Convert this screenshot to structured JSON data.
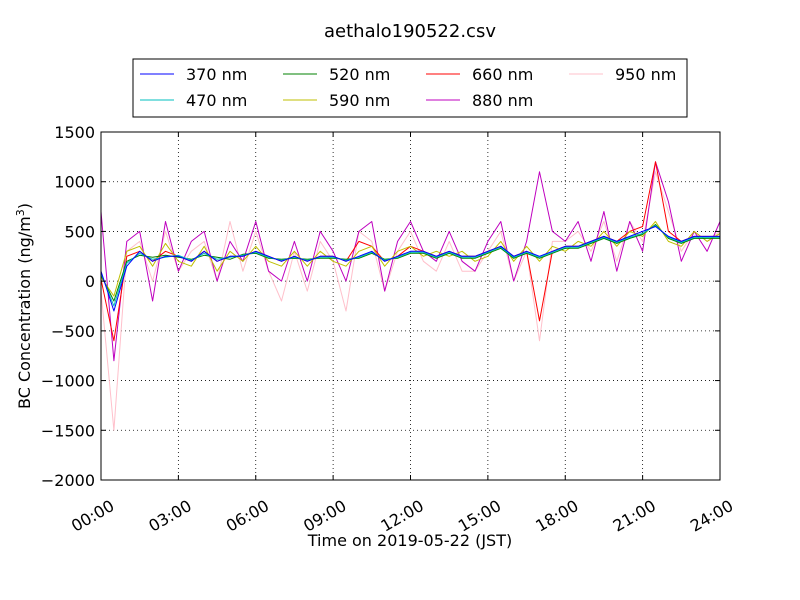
{
  "chart_data": {
    "type": "line",
    "title": "aethalo190522.csv",
    "xlabel": "Time on 2019-05-22 (JST)",
    "ylabel_main": "BC Concentration (ng/m",
    "ylabel_sup": "3",
    "ylabel_end": ")",
    "xlim": [
      0,
      24
    ],
    "ylim": [
      -2000,
      1500
    ],
    "x_ticks": [
      0,
      3,
      6,
      9,
      12,
      15,
      18,
      21,
      24
    ],
    "x_tick_labels": [
      "00:00",
      "03:00",
      "06:00",
      "09:00",
      "12:00",
      "15:00",
      "18:00",
      "21:00",
      "24:00"
    ],
    "y_ticks": [
      -2000,
      -1500,
      -1000,
      -500,
      0,
      500,
      1000,
      1500
    ],
    "y_tick_labels": [
      "−2000",
      "−1500",
      "−1000",
      "−500",
      "0",
      "500",
      "1000",
      "1500"
    ],
    "grid": true,
    "legend_position": "top",
    "x_unit": "hours of day",
    "x_points": [
      0,
      0.5,
      1,
      1.5,
      2,
      2.5,
      3,
      3.5,
      4,
      4.5,
      5,
      5.5,
      6,
      6.5,
      7,
      7.5,
      8,
      8.5,
      9,
      9.5,
      10,
      10.5,
      11,
      11.5,
      12,
      12.5,
      13,
      13.5,
      14,
      14.5,
      15,
      15.5,
      16,
      16.5,
      17,
      17.5,
      18,
      18.5,
      19,
      19.5,
      20,
      20.5,
      21,
      21.5,
      22,
      22.5,
      23,
      23.5,
      24
    ],
    "series": [
      {
        "name": "370 nm",
        "color": "#0000ff",
        "values": [
          100,
          -300,
          150,
          300,
          200,
          250,
          250,
          200,
          300,
          200,
          250,
          250,
          300,
          250,
          200,
          250,
          200,
          250,
          250,
          200,
          250,
          300,
          200,
          250,
          300,
          300,
          250,
          300,
          250,
          250,
          300,
          350,
          250,
          300,
          250,
          300,
          350,
          350,
          400,
          450,
          400,
          450,
          500,
          550,
          450,
          400,
          450,
          450,
          450
        ]
      },
      {
        "name": "470 nm",
        "color": "#00bfbf",
        "values": [
          80,
          -250,
          180,
          280,
          220,
          240,
          260,
          210,
          280,
          220,
          240,
          260,
          290,
          240,
          210,
          240,
          210,
          240,
          240,
          210,
          240,
          290,
          210,
          240,
          290,
          290,
          240,
          290,
          240,
          240,
          290,
          340,
          240,
          290,
          240,
          290,
          340,
          340,
          390,
          440,
          390,
          440,
          480,
          560,
          440,
          390,
          440,
          440,
          440
        ]
      },
      {
        "name": "520 nm",
        "color": "#008000",
        "values": [
          60,
          -200,
          200,
          260,
          240,
          260,
          240,
          220,
          260,
          240,
          220,
          270,
          280,
          230,
          220,
          230,
          220,
          230,
          230,
          220,
          230,
          280,
          220,
          230,
          280,
          280,
          230,
          280,
          230,
          230,
          280,
          330,
          230,
          280,
          230,
          280,
          330,
          330,
          380,
          430,
          380,
          430,
          470,
          570,
          430,
          380,
          430,
          430,
          430
        ]
      },
      {
        "name": "590 nm",
        "color": "#bfbf00",
        "values": [
          40,
          -150,
          300,
          350,
          150,
          380,
          200,
          150,
          350,
          100,
          300,
          200,
          350,
          200,
          150,
          300,
          150,
          300,
          200,
          150,
          300,
          350,
          150,
          300,
          350,
          250,
          300,
          250,
          300,
          200,
          250,
          400,
          200,
          350,
          200,
          350,
          300,
          400,
          350,
          500,
          350,
          500,
          450,
          600,
          400,
          350,
          500,
          400,
          480
        ]
      },
      {
        "name": "660 nm",
        "color": "#ff0000",
        "values": [
          20,
          -600,
          250,
          300,
          200,
          300,
          250,
          200,
          300,
          200,
          250,
          250,
          300,
          250,
          200,
          250,
          200,
          250,
          250,
          200,
          400,
          350,
          200,
          250,
          350,
          300,
          250,
          300,
          250,
          250,
          300,
          350,
          250,
          300,
          -400,
          300,
          350,
          350,
          400,
          450,
          400,
          500,
          550,
          1200,
          500,
          400,
          450,
          450,
          450
        ]
      },
      {
        "name": "880 nm",
        "color": "#bf00bf",
        "values": [
          700,
          -800,
          400,
          500,
          -200,
          600,
          100,
          400,
          500,
          0,
          400,
          200,
          600,
          100,
          0,
          400,
          0,
          500,
          300,
          0,
          500,
          600,
          -100,
          400,
          600,
          300,
          200,
          500,
          200,
          100,
          400,
          600,
          0,
          400,
          1100,
          500,
          400,
          600,
          200,
          700,
          100,
          600,
          300,
          1200,
          800,
          200,
          500,
          300,
          600
        ]
      },
      {
        "name": "950 nm",
        "color": "#ffc0cb",
        "values": [
          -100,
          -1500,
          300,
          400,
          0,
          500,
          100,
          300,
          400,
          0,
          600,
          100,
          500,
          100,
          -200,
          300,
          -100,
          400,
          200,
          -300,
          500,
          400,
          -100,
          300,
          500,
          200,
          100,
          400,
          100,
          100,
          300,
          500,
          0,
          300,
          -600,
          400,
          400,
          500,
          300,
          600,
          200,
          600,
          400,
          1100,
          700,
          300,
          500,
          400,
          500
        ]
      }
    ]
  }
}
